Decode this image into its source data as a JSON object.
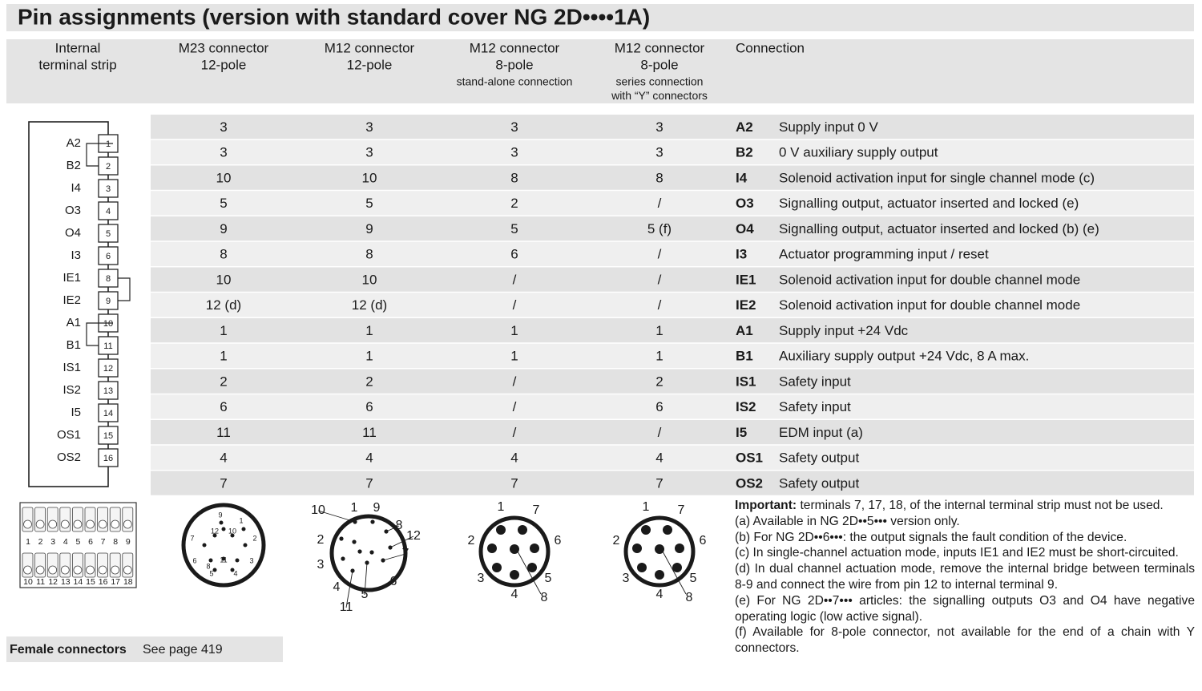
{
  "title": "Pin assignments (version with standard cover NG 2D••••1A)",
  "header": {
    "columns": [
      [
        "Internal",
        "terminal strip"
      ],
      [
        "M23 connector",
        "12-pole"
      ],
      [
        "M12 connector",
        "12-pole"
      ],
      [
        "M12 connector",
        "8-pole",
        "stand-alone connection"
      ],
      [
        "M12 connector",
        "8-pole",
        "series connection",
        "with “Y” connectors"
      ],
      [
        "Connection"
      ]
    ]
  },
  "table": {
    "rows": [
      [
        3,
        3,
        3,
        3,
        "A2",
        "Supply input 0 V"
      ],
      [
        3,
        3,
        3,
        3,
        "B2",
        "0 V auxiliary supply output"
      ],
      [
        10,
        10,
        8,
        8,
        "I4",
        "Solenoid activation input for single channel mode (c)"
      ],
      [
        5,
        5,
        2,
        "/",
        "O3",
        "Signalling output, actuator inserted and locked (e)"
      ],
      [
        9,
        9,
        5,
        "5 (f)",
        "O4",
        "Signalling output, actuator inserted and locked (b) (e)"
      ],
      [
        8,
        8,
        6,
        "/",
        "I3",
        "Actuator programming input / reset"
      ],
      [
        10,
        10,
        "/",
        "/",
        "IE1",
        "Solenoid activation input for double channel mode"
      ],
      [
        "12 (d)",
        "12 (d)",
        "/",
        "/",
        "IE2",
        "Solenoid activation input for double channel mode"
      ],
      [
        1,
        1,
        1,
        1,
        "A1",
        "Supply input +24 Vdc"
      ],
      [
        1,
        1,
        1,
        1,
        "B1",
        "Auxiliary supply output +24 Vdc, 8 A max."
      ],
      [
        2,
        2,
        "/",
        2,
        "IS1",
        "Safety input"
      ],
      [
        6,
        6,
        "/",
        6,
        "IS2",
        "Safety input"
      ],
      [
        11,
        11,
        "/",
        "/",
        "I5",
        "EDM input (a)"
      ],
      [
        4,
        4,
        4,
        4,
        "OS1",
        "Safety output"
      ],
      [
        7,
        7,
        7,
        7,
        "OS2",
        "Safety output"
      ]
    ]
  },
  "terminal_strip": {
    "labels": [
      "A2",
      "B2",
      "I4",
      "O3",
      "O4",
      "I3",
      "IE1",
      "IE2",
      "A1",
      "B1",
      "IS1",
      "IS2",
      "I5",
      "OS1",
      "OS2"
    ],
    "numbers": [
      1,
      2,
      3,
      4,
      5,
      6,
      8,
      9,
      10,
      11,
      12,
      13,
      14,
      15,
      16
    ]
  },
  "terminal_block": {
    "top": [
      1,
      2,
      3,
      4,
      5,
      6,
      7,
      8,
      9
    ],
    "bottom": [
      10,
      11,
      12,
      13,
      14,
      15,
      16,
      17,
      18
    ]
  },
  "connectors": [
    {
      "pins": [
        9,
        12,
        10,
        1,
        2,
        7,
        11,
        8,
        6,
        3,
        5,
        4
      ]
    },
    {
      "pins": [
        10,
        1,
        9,
        8,
        12,
        2,
        7,
        3,
        6,
        4,
        5,
        11
      ]
    },
    {
      "pins": [
        1,
        7,
        2,
        6,
        3,
        5,
        4,
        8
      ]
    },
    {
      "pins": [
        1,
        7,
        2,
        6,
        3,
        5,
        4,
        8
      ]
    }
  ],
  "notes": [
    {
      "label": "Important:",
      "text": "terminals 7, 17, 18, of the internal terminal strip must not be used."
    },
    "(a) Available in NG 2D••5••• version only.",
    "(b) For NG 2D••6•••: the output signals the fault condition of the device.",
    "(c) In single-channel actuation mode, inputs IE1 and IE2 must be short-circuited.",
    "(d) In dual channel actuation mode, remove the internal bridge between terminals 8-9 and connect the wire from pin 12 to internal terminal 9.",
    "(e) For NG 2D••7••• articles: the signalling outputs O3 and O4 have negative operating logic (low active signal).",
    "(f) Available for 8-pole connector, not available for the end of a chain with Y connectors."
  ],
  "footer": {
    "label": "Female connectors",
    "text": "See page 419"
  }
}
